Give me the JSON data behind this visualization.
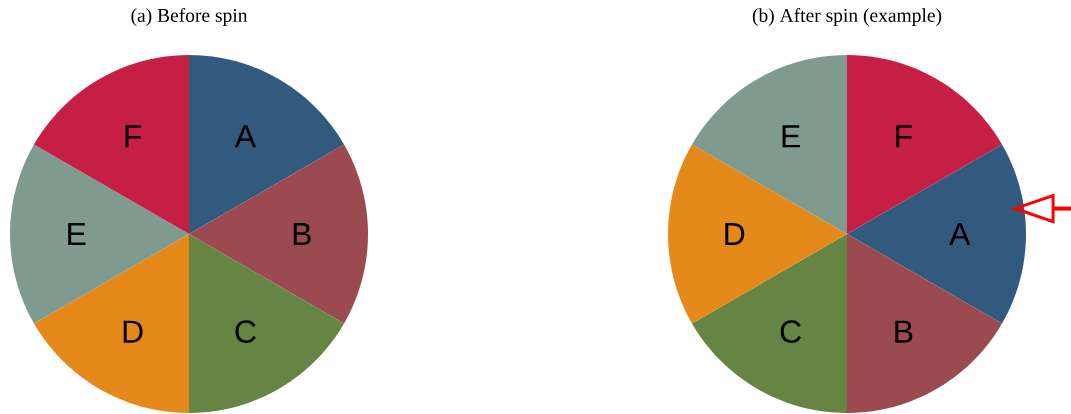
{
  "chart_data": [
    {
      "type": "pie",
      "title": "(a) Before spin",
      "categories": [
        "A",
        "B",
        "C",
        "D",
        "E",
        "F"
      ],
      "values": [
        16.666666666666668,
        16.666666666666668,
        16.666666666666668,
        16.666666666666668,
        16.666666666666668,
        16.666666666666668
      ],
      "colors": [
        "#325a7f",
        "#9b4a50",
        "#668443",
        "#e58a1a",
        "#7f9a8e",
        "#c51f46"
      ]
    },
    {
      "type": "pie",
      "title": "(b) After spin (example)",
      "categories": [
        "F",
        "A",
        "B",
        "C",
        "D",
        "E"
      ],
      "values": [
        16.666666666666668,
        16.666666666666668,
        16.666666666666668,
        16.666666666666668,
        16.666666666666668,
        16.666666666666668
      ],
      "colors": [
        "#c51f46",
        "#325a7f",
        "#9b4a50",
        "#668443",
        "#e58a1a",
        "#7f9a8e"
      ]
    }
  ]
}
